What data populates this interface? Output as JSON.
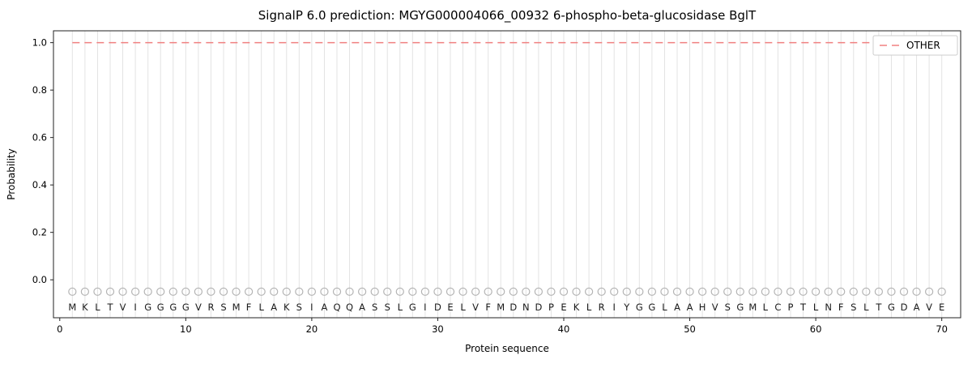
{
  "chart_data": {
    "type": "line",
    "title": "SignalP 6.0 prediction: MGYG000004066_00932 6-phospho-beta-glucosidase BglT",
    "xlabel": "Protein sequence",
    "ylabel": "Probability",
    "xlim": [
      -0.5,
      71.5
    ],
    "ylim": [
      -0.16,
      1.05
    ],
    "xticks": [
      0,
      10,
      20,
      30,
      40,
      50,
      60,
      70
    ],
    "yticks": [
      0.0,
      0.2,
      0.4,
      0.6,
      0.8,
      1.0
    ],
    "grid": "vertical-per-residue",
    "legend_position": "upper right",
    "sequence": "MKLTVIGGGGVRSMFLAKSIAQQASSLGIDELVFMDNDPEKLRIYGGLAAHVSGMLCPTLNFSLTGDAVE",
    "marker_y": -0.05,
    "letter_y": -0.13,
    "series": [
      {
        "name": "OTHER",
        "style": "dashed",
        "color": "#f08080",
        "value": 1.0,
        "x_start": 1,
        "x_end": 70
      }
    ]
  }
}
